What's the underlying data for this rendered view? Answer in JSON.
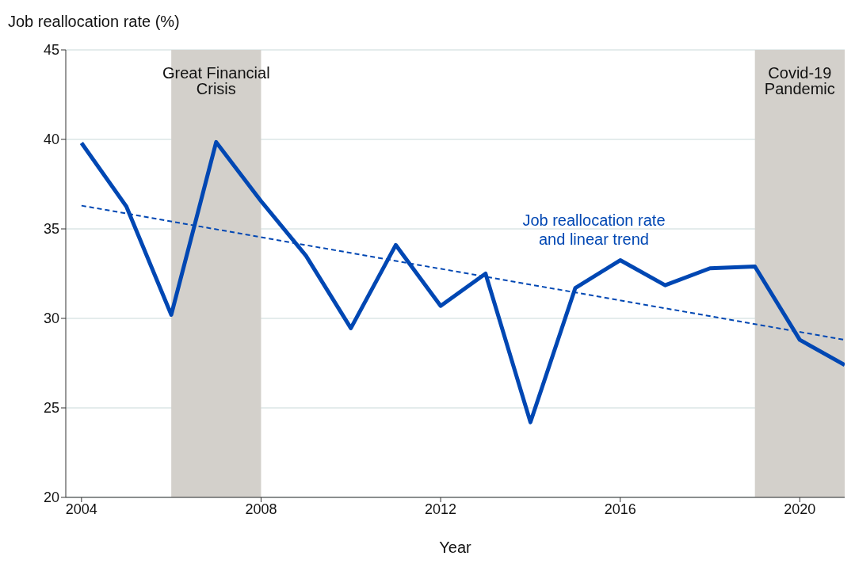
{
  "chart_data": {
    "type": "line",
    "xlabel": "Year",
    "ylabel": "Job reallocation rate (%)",
    "x": [
      2004,
      2005,
      2006,
      2007,
      2008,
      2009,
      2010,
      2011,
      2012,
      2013,
      2014,
      2015,
      2016,
      2017,
      2018,
      2019,
      2020,
      2021
    ],
    "series": [
      {
        "color": "#0047b3",
        "values": [
          39.8,
          36.25,
          30.2,
          39.85,
          36.55,
          33.5,
          29.45,
          34.1,
          30.7,
          32.5,
          24.2,
          31.7,
          33.25,
          31.85,
          32.8,
          32.9,
          28.8,
          27.4
        ],
        "line_style": "solid"
      },
      {
        "type": "line",
        "color": "#0047b3",
        "x": [
          2004,
          2021
        ],
        "values": [
          36.3,
          28.8
        ],
        "line_style": "dashed"
      }
    ],
    "xlim": [
      2003.65,
      2021
    ],
    "xticks": [
      2004,
      2008,
      2012,
      2016,
      2020
    ],
    "ylim": [
      20,
      45
    ],
    "yticks": [
      20,
      25,
      30,
      35,
      40,
      45
    ],
    "bands": [
      {
        "axis": "x",
        "from": 2006,
        "to": 2008,
        "label": "Great Financial Crisis",
        "color": "#d3d0cb"
      },
      {
        "axis": "x",
        "from": 2019,
        "to": 2021,
        "label": "Covid-19 Pandemic",
        "color": "#d3d0cb"
      }
    ],
    "annotations": [
      "Job reallocation rate and linear trend"
    ],
    "grid": "y",
    "marker": "none"
  }
}
